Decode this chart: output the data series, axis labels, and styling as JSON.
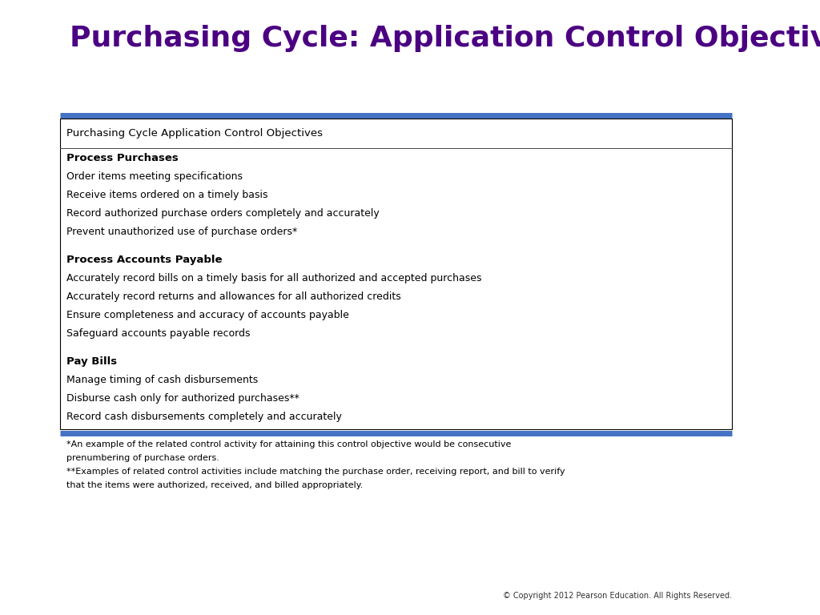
{
  "title": "Purchasing Cycle: Application Control Objectives",
  "title_color": "#4B0082",
  "title_fontsize": 26,
  "background_color": "#ffffff",
  "table_header": "Purchasing Cycle Application Control Objectives",
  "blue_line_color": "#4472C4",
  "box_border_color": "#000000",
  "sections": [
    {
      "heading": "Process Purchases",
      "items": [
        "Order items meeting specifications",
        "Receive items ordered on a timely basis",
        "Record authorized purchase orders completely and accurately",
        "Prevent unauthorized use of purchase orders*"
      ]
    },
    {
      "heading": "Process Accounts Payable",
      "items": [
        "Accurately record bills on a timely basis for all authorized and accepted purchases",
        "Accurately record returns and allowances for all authorized credits",
        "Ensure completeness and accuracy of accounts payable",
        "Safeguard accounts payable records"
      ]
    },
    {
      "heading": "Pay Bills",
      "items": [
        "Manage timing of cash disbursements",
        "Disburse cash only for authorized purchases**",
        "Record cash disbursements completely and accurately"
      ]
    }
  ],
  "footnote1_line1": "*An example of the related control activity for attaining this control objective would be consecutive",
  "footnote1_line2": "prenumbering of purchase orders.",
  "footnote2_line1": "**Examples of related control activities include matching the purchase order, receiving report, and bill to verify",
  "footnote2_line2": "that the items were authorized, received, and billed appropriately.",
  "copyright": "© Copyright 2012 Pearson Education. All Rights Reserved.",
  "content_fontsize": 9,
  "heading_fontsize": 9.5,
  "header_fontsize": 9.5,
  "footnote_fontsize": 8,
  "copyright_fontsize": 7
}
